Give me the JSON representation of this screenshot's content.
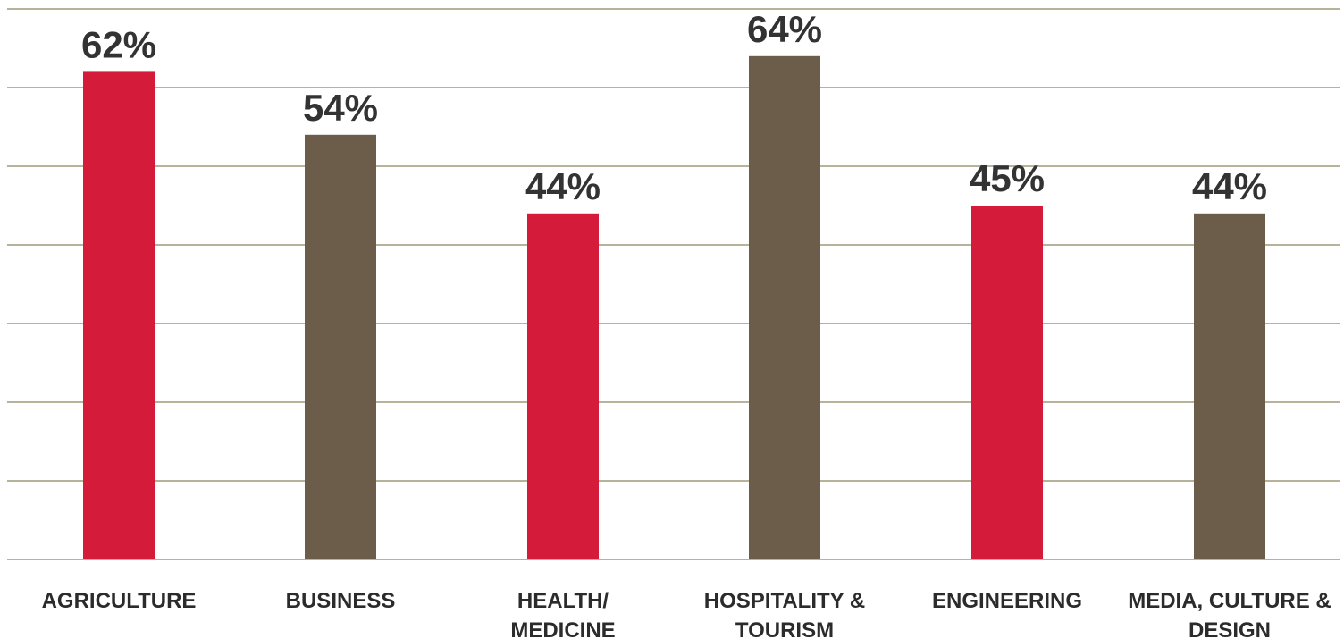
{
  "chart_data": {
    "type": "bar",
    "title": "",
    "xlabel": "",
    "ylabel": "",
    "ylim": [
      0,
      70
    ],
    "grid": true,
    "categories": [
      [
        "AGRICULTURE"
      ],
      [
        "BUSINESS"
      ],
      [
        "HEALTH/",
        "MEDICINE"
      ],
      [
        "HOSPITALITY &",
        "TOURISM"
      ],
      [
        "ENGINEERING"
      ],
      [
        "MEDIA, CULTURE &",
        "DESIGN"
      ]
    ],
    "values": [
      62,
      54,
      44,
      64,
      45,
      44
    ],
    "data_labels": [
      "62%",
      "54%",
      "44%",
      "64%",
      "45%",
      "44%"
    ],
    "colors": [
      "#d51b3a",
      "#6b5d4a",
      "#d51b3a",
      "#6b5d4a",
      "#d51b3a",
      "#6b5d4a"
    ]
  }
}
